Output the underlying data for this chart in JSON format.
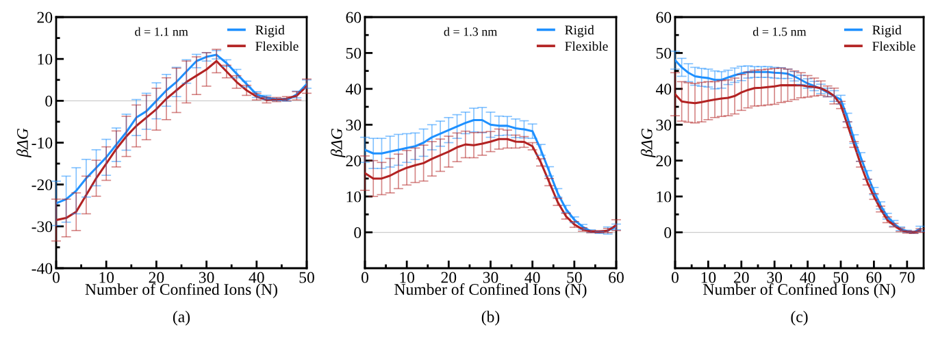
{
  "chart_data": [
    {
      "type": "line",
      "xlabel": "Number of Confined Ions (N)",
      "ylabel": "βΔG",
      "annotations": [
        "d = 1.1 nm",
        "(a)"
      ],
      "x": [
        0,
        2,
        4,
        6,
        8,
        10,
        12,
        14,
        16,
        18,
        20,
        22,
        24,
        26,
        28,
        30,
        32,
        34,
        36,
        38,
        40,
        42,
        44,
        46,
        48,
        50
      ],
      "series": [
        {
          "name": "Rigid",
          "color": "#1e90ff",
          "values": [
            -24.5,
            -23.5,
            -21.5,
            -18.5,
            -16,
            -13.5,
            -10.5,
            -7.5,
            -4,
            -2.5,
            0,
            2.5,
            4.5,
            7,
            9.5,
            10.5,
            11,
            9,
            6.5,
            4,
            1.5,
            0.8,
            0.3,
            0.2,
            1.5,
            4
          ],
          "errors": [
            5.3,
            5.5,
            5.5,
            4.5,
            4.3,
            4.3,
            4,
            4.3,
            4.3,
            4.3,
            4.3,
            3.8,
            3.5,
            2.8,
            1.6,
            1,
            1,
            0.8,
            1,
            0.7,
            0.7,
            0.5,
            0.3,
            0.3,
            0.8,
            1
          ]
        },
        {
          "name": "Flexible",
          "color": "#b22222",
          "values": [
            -28.5,
            -28,
            -26.5,
            -22.5,
            -18.5,
            -15,
            -11.5,
            -8.5,
            -6,
            -4,
            -2,
            0.5,
            2.5,
            4.5,
            6,
            7.5,
            9.5,
            7,
            4.5,
            2.5,
            1,
            0.2,
            0.3,
            0.5,
            1.2,
            3.5
          ],
          "errors": [
            5,
            4.5,
            4.5,
            4.5,
            4.3,
            4,
            4.3,
            4.8,
            5,
            5.3,
            5,
            5,
            5.3,
            5,
            4.5,
            4,
            2.8,
            1.5,
            1.5,
            1.2,
            0.8,
            0.7,
            0.5,
            0.5,
            1,
            1.7
          ]
        }
      ],
      "xlim": [
        0,
        50
      ],
      "xticks": [
        0,
        10,
        20,
        30,
        40,
        50
      ],
      "ylim": [
        -40,
        20
      ],
      "yticks": [
        -40,
        -30,
        -20,
        -10,
        0,
        10,
        20
      ],
      "ref_lines": [
        {
          "axis": "y",
          "value": 0,
          "color": "#cccccc"
        }
      ],
      "legend": "top right",
      "grid": false,
      "marker": "none",
      "line_style": "solid"
    },
    {
      "type": "line",
      "xlabel": "Number of Confined Ions (N)",
      "ylabel": "βΔG",
      "annotations": [
        "d = 1.3 nm",
        "(b)"
      ],
      "x": [
        0,
        2,
        4,
        6,
        8,
        10,
        12,
        14,
        16,
        18,
        20,
        22,
        24,
        26,
        28,
        30,
        32,
        34,
        36,
        38,
        40,
        42,
        44,
        46,
        48,
        50,
        52,
        54,
        56,
        58,
        60
      ],
      "series": [
        {
          "name": "Rigid",
          "color": "#1e90ff",
          "values": [
            23,
            22,
            22,
            22.5,
            23,
            23.5,
            24,
            25,
            26.5,
            27.5,
            28.5,
            29.5,
            30.5,
            31.3,
            31.3,
            30,
            29.7,
            29.7,
            29,
            28.7,
            28.2,
            23,
            17,
            11,
            6.5,
            3.5,
            1.5,
            0.3,
            0,
            0.5,
            1.5
          ],
          "errors": [
            3.5,
            4.2,
            4.2,
            4.3,
            4.3,
            4,
            3.7,
            3.8,
            3.5,
            3.5,
            3.5,
            3.3,
            3,
            3.3,
            3.5,
            3.5,
            2.7,
            2.6,
            2.6,
            2.4,
            2,
            1.5,
            1.3,
            1.2,
            1,
            0.8,
            0.7,
            0.4,
            0.3,
            1,
            0.8
          ]
        },
        {
          "name": "Flexible",
          "color": "#b22222",
          "values": [
            16.5,
            15,
            15,
            15.8,
            17,
            18,
            18.7,
            19.3,
            20.5,
            21.5,
            22.5,
            23.7,
            24.5,
            24.3,
            24.7,
            25.3,
            26,
            26,
            25.3,
            25.2,
            24,
            19.5,
            14,
            8.5,
            4.5,
            2.2,
            0.8,
            0.2,
            0.2,
            0.5,
            2
          ],
          "errors": [
            4.8,
            5,
            4.5,
            4.8,
            4.8,
            4.8,
            4.8,
            5,
            4.8,
            4.5,
            4.3,
            4,
            3.7,
            3.5,
            3.2,
            2.8,
            2.8,
            2.5,
            1.8,
            1.5,
            1,
            1,
            1,
            1,
            0.8,
            0.8,
            0.5,
            0.3,
            0.3,
            0.6,
            1.5
          ]
        }
      ],
      "xlim": [
        0,
        60
      ],
      "xticks": [
        0,
        10,
        20,
        30,
        40,
        50,
        60
      ],
      "ylim": [
        -10,
        60
      ],
      "yticks": [
        0,
        10,
        20,
        30,
        40,
        50,
        60
      ],
      "ref_lines": [
        {
          "axis": "y",
          "value": 0,
          "color": "#cccccc"
        }
      ],
      "legend": "top right",
      "grid": false,
      "marker": "none",
      "line_style": "solid"
    },
    {
      "type": "line",
      "xlabel": "Number of Confined Ions (N)",
      "ylabel": "βΔG",
      "annotations": [
        "d = 1.5 nm",
        "(c)"
      ],
      "x": [
        0,
        2,
        4,
        6,
        8,
        10,
        12,
        14,
        16,
        18,
        20,
        22,
        24,
        26,
        28,
        30,
        32,
        34,
        36,
        38,
        40,
        42,
        44,
        46,
        48,
        50,
        52,
        54,
        56,
        58,
        60,
        62,
        64,
        66,
        68,
        70,
        72,
        74
      ],
      "series": [
        {
          "name": "Rigid",
          "color": "#1e90ff",
          "values": [
            48,
            46,
            44.5,
            43.5,
            43.2,
            43,
            42.5,
            42.5,
            43.2,
            43.8,
            44.3,
            44.7,
            44.7,
            44.7,
            44.7,
            44.5,
            44.4,
            44.2,
            43.5,
            42.5,
            41.5,
            40.8,
            40,
            39,
            38,
            37,
            32,
            26,
            21,
            16,
            11.5,
            7.5,
            4.5,
            2.5,
            1,
            0.3,
            0,
            1
          ],
          "errors": [
            2.5,
            2.5,
            2.5,
            2.5,
            2.5,
            2.5,
            2.5,
            2.3,
            2,
            2,
            2,
            1.7,
            1.5,
            1.5,
            1.5,
            1.5,
            1.5,
            1.3,
            1.3,
            1.3,
            1.3,
            1.3,
            1.3,
            1.2,
            1.5,
            1.2,
            1.2,
            1.2,
            1.2,
            1.2,
            1,
            1,
            0.8,
            0.8,
            0.5,
            0.3,
            0.3,
            0.7
          ]
        },
        {
          "name": "Flexible",
          "color": "#b22222",
          "values": [
            38.5,
            36.5,
            36.2,
            36,
            36.3,
            36.7,
            37,
            37.3,
            37.5,
            38,
            39,
            39.7,
            40.2,
            40.3,
            40.5,
            40.7,
            41,
            41,
            41,
            41,
            40.7,
            40.5,
            40.2,
            39.3,
            38,
            35.5,
            30,
            24.5,
            19,
            14,
            10,
            6.5,
            3.5,
            2,
            0.7,
            0.1,
            0,
            0.5
          ],
          "errors": [
            6,
            5.5,
            5.5,
            5.5,
            5.5,
            5.3,
            5,
            5,
            5,
            5,
            5,
            5,
            5,
            5,
            5,
            5,
            4.8,
            4.5,
            4,
            3.5,
            3,
            2.5,
            2,
            1.5,
            2.2,
            1,
            0.8,
            0.8,
            0.8,
            0.8,
            0.8,
            0.8,
            0.8,
            0.5,
            0.5,
            0.3,
            0.3,
            0.5
          ]
        }
      ],
      "xlim": [
        0,
        75
      ],
      "xticks": [
        0,
        10,
        20,
        30,
        40,
        50,
        60,
        70
      ],
      "ylim": [
        -10,
        60
      ],
      "yticks": [
        0,
        10,
        20,
        30,
        40,
        50,
        60
      ],
      "ref_lines": [
        {
          "axis": "y",
          "value": 0,
          "color": "#cccccc"
        }
      ],
      "legend": "top right",
      "grid": false,
      "marker": "none",
      "line_style": "solid"
    }
  ]
}
